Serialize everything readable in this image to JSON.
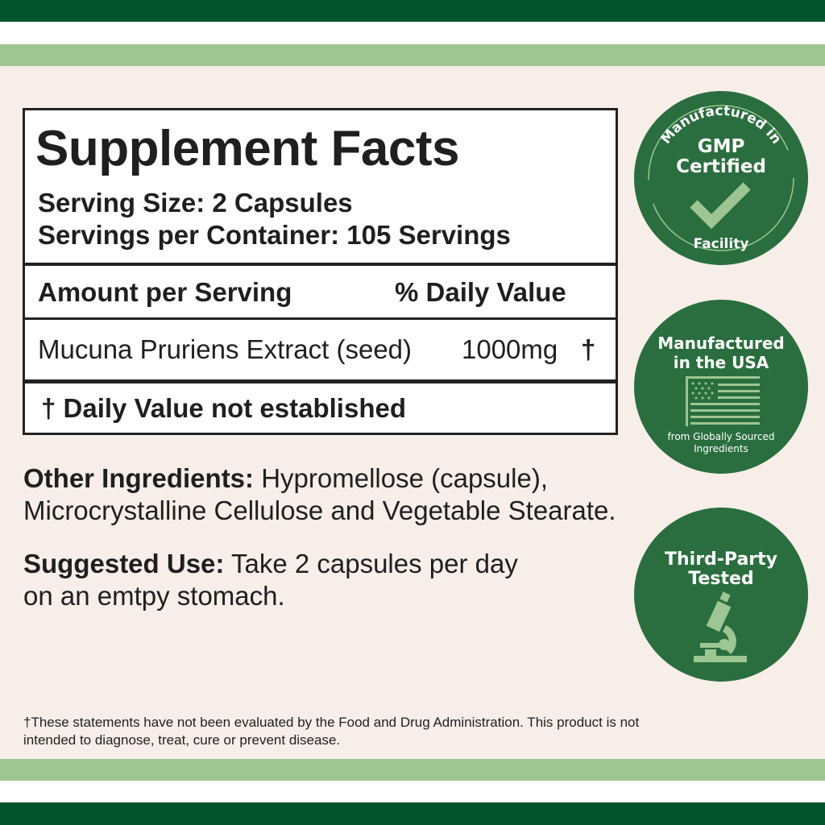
{
  "colors": {
    "dark_green": "#02542f",
    "light_green": "#9dc692",
    "background": "#f7eee9",
    "badge_green": "#2a6e3f",
    "icon_green": "#9dc692"
  },
  "facts": {
    "title": "Supplement Facts",
    "serving_size": "Serving Size: 2 Capsules",
    "servings_per_container": "Servings per Container: 105 Servings",
    "amount_header": "Amount per Serving",
    "dv_header": "% Daily Value",
    "ingredient": "Mucuna Pruriens Extract (seed)",
    "amount": "1000mg",
    "dv_mark": "†",
    "footnote": "† Daily Value not established"
  },
  "other_ingredients": {
    "label": "Other Ingredients:",
    "line1": " Hypromellose (capsule),",
    "line2": "Microcrystalline Cellulose and Vegetable Stearate."
  },
  "suggested_use": {
    "label": "Suggested Use:",
    "line1": " Take 2 capsules per day",
    "line2": "on an emtpy stomach."
  },
  "disclaimer": {
    "line1": "†These statements have not been evaluated by the Food and Drug Administration. This product is not",
    "line2": "intended to diagnose, treat, cure or prevent disease."
  },
  "badges": [
    {
      "top": "Manufactured in",
      "title1": "GMP",
      "title2": "Certified",
      "bottom": "Facility",
      "icon": "checkmark-icon"
    },
    {
      "title1": "Manufactured",
      "title2": "in the USA",
      "sub1": "from Globally Sourced",
      "sub2": "Ingredients",
      "icon": "us-flag-icon"
    },
    {
      "title1": "Third-Party",
      "title2": "Tested",
      "icon": "microscope-icon"
    }
  ]
}
